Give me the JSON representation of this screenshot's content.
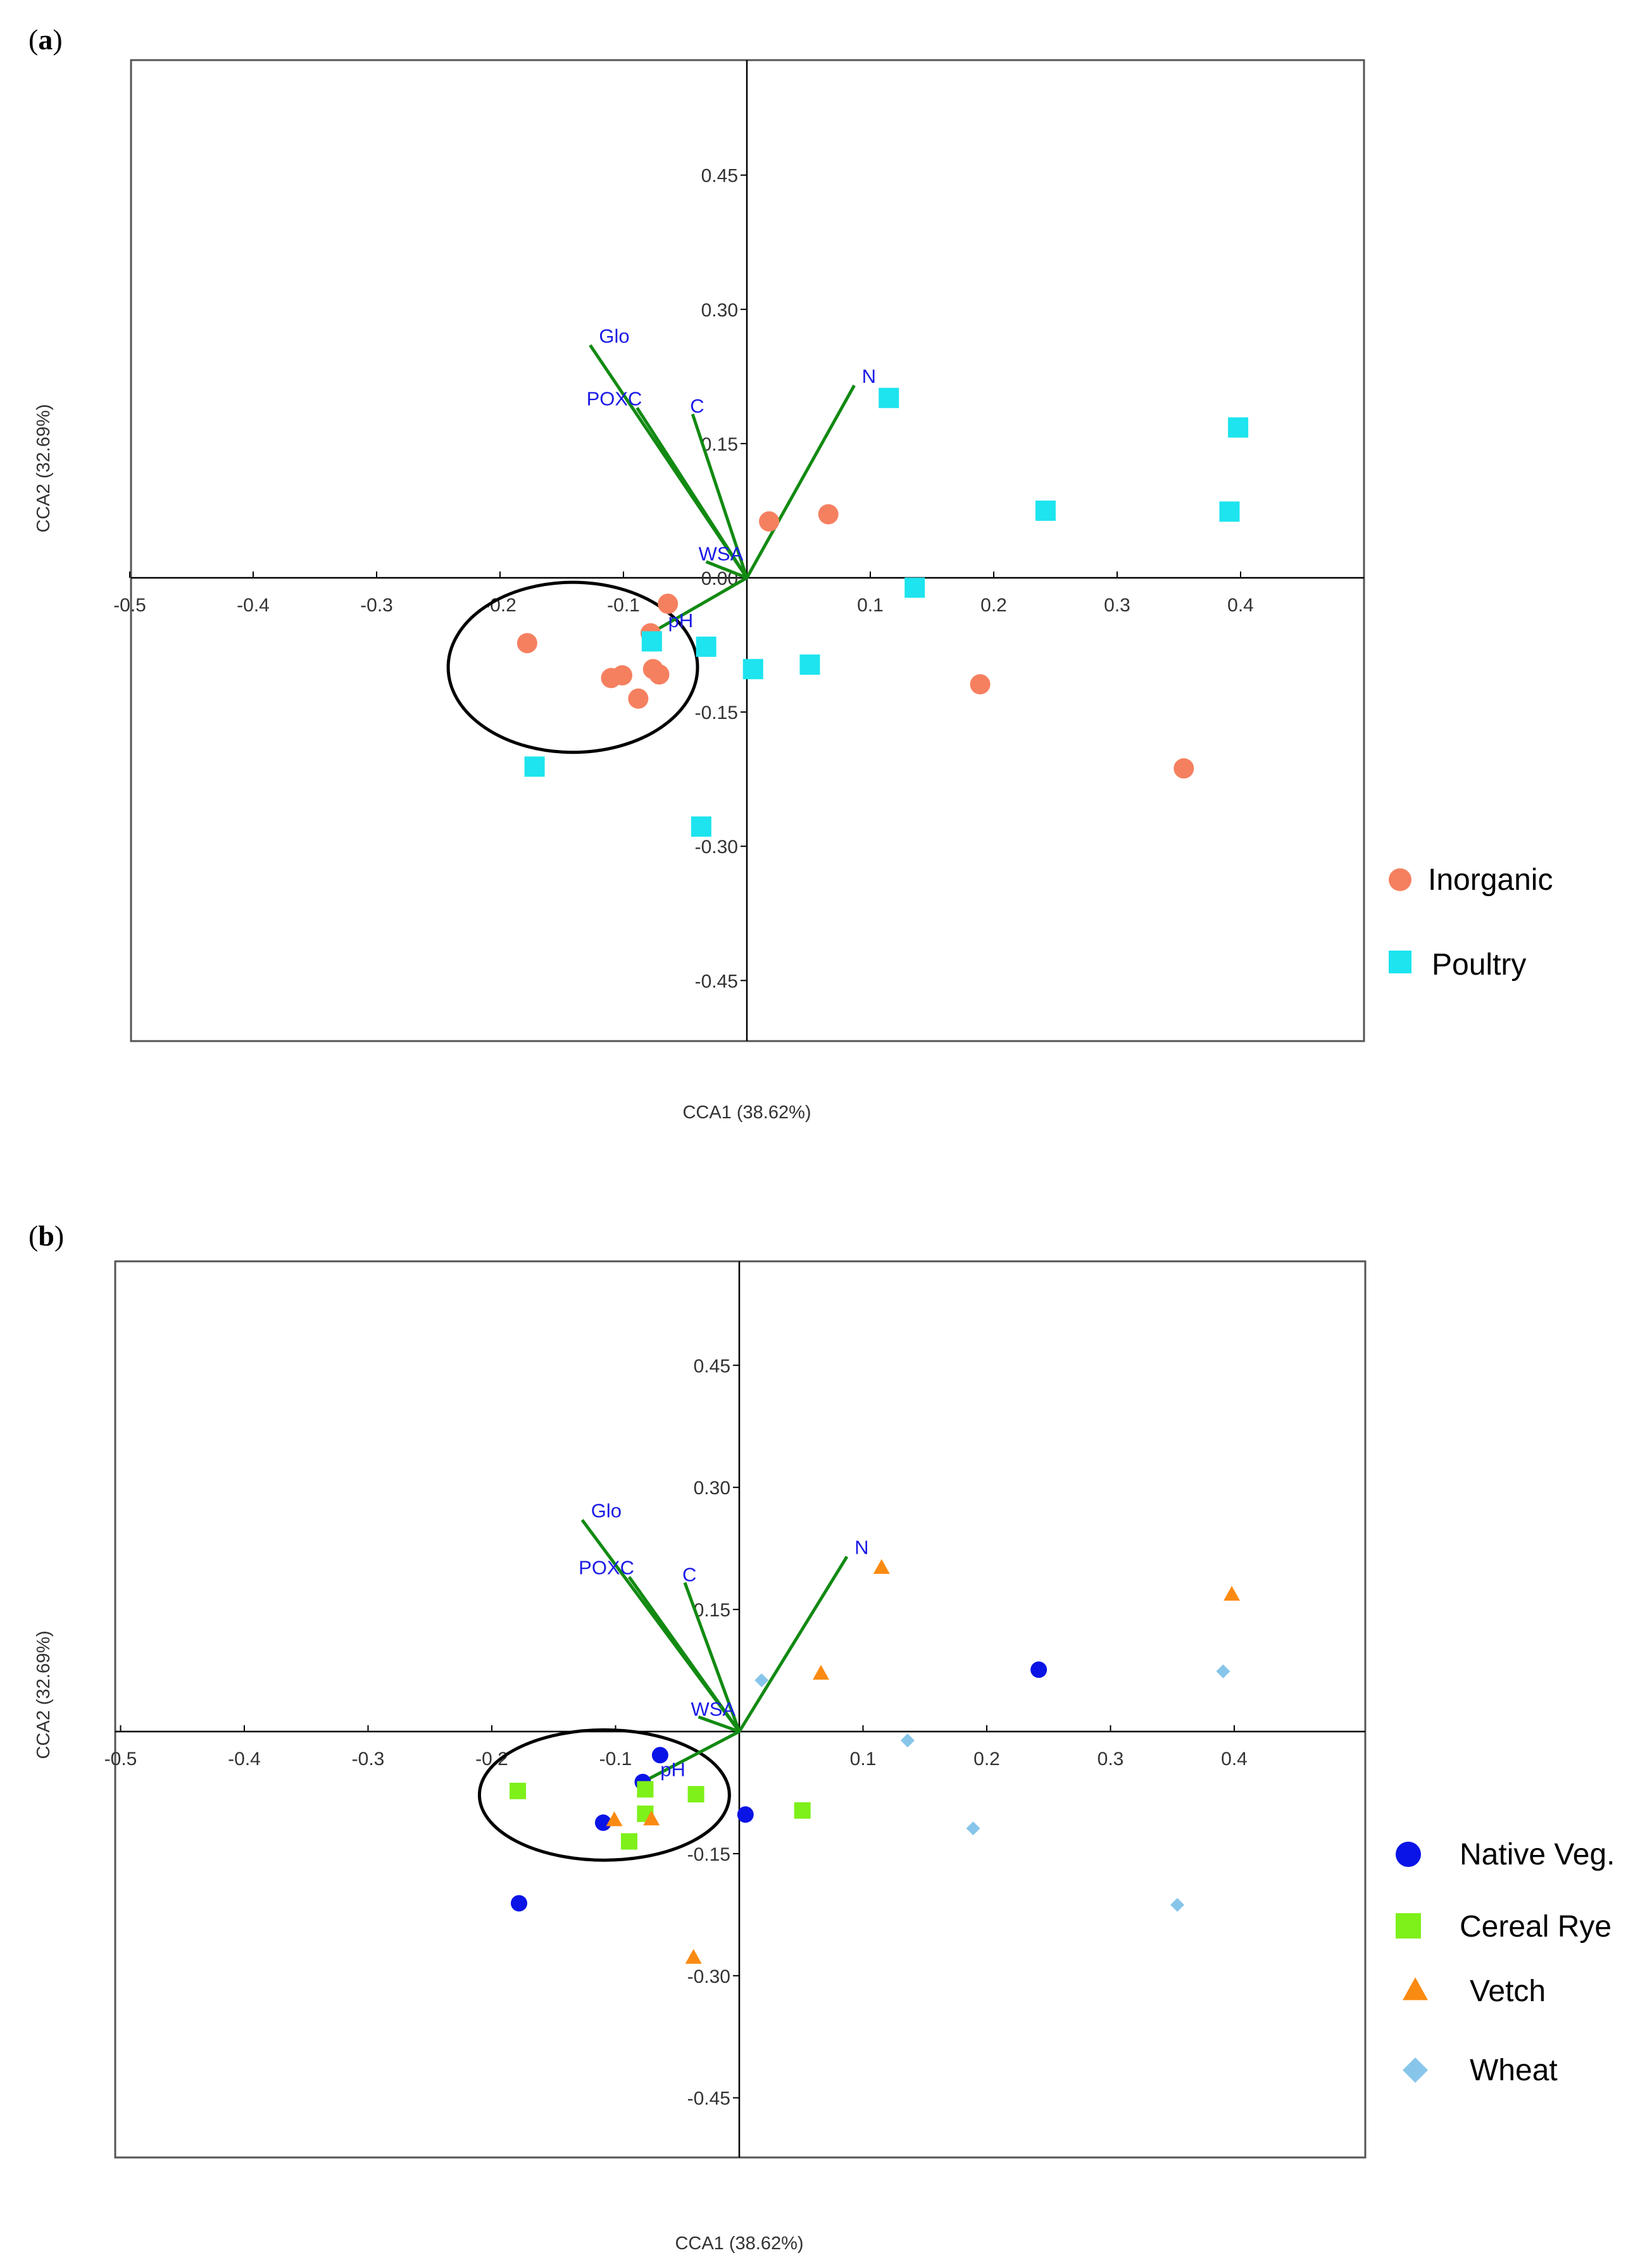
{
  "chart_data": [
    {
      "type": "scatter",
      "panel_label": "a",
      "title": "",
      "xlabel": "CCA1 (38.62%)",
      "ylabel": "CCA2 (32.69%)",
      "xlim": [
        -0.5,
        0.5
      ],
      "ylim": [
        -0.55,
        0.55
      ],
      "x_ticks": [
        -0.5,
        -0.4,
        -0.3,
        -0.2,
        -0.1,
        0.1,
        0.2,
        0.3,
        0.4
      ],
      "x_tick_labels": [
        "-0.5",
        "-0.4",
        "-0.3",
        "-0.2",
        "-0.1",
        "0.1",
        "0.2",
        "0.3",
        "0.4"
      ],
      "y_ticks": [
        0.45,
        0.3,
        0.15,
        0.0,
        -0.15,
        -0.3,
        -0.45
      ],
      "y_tick_labels": [
        "0.45",
        "0.30",
        "0.15",
        "0.00",
        "-0.15",
        "-0.30",
        "-0.45"
      ],
      "legend_position": "right",
      "vectors": [
        {
          "label": "Glo",
          "x": -0.127,
          "y": 0.26
        },
        {
          "label": "POXC",
          "x": -0.089,
          "y": 0.19
        },
        {
          "label": "C",
          "x": -0.044,
          "y": 0.183
        },
        {
          "label": "N",
          "x": 0.087,
          "y": 0.215
        },
        {
          "label": "WSA",
          "x": -0.033,
          "y": 0.018
        },
        {
          "label": "pH",
          "x": -0.073,
          "y": -0.058
        }
      ],
      "ellipse": {
        "cx": -0.141,
        "cy": -0.1,
        "rx": 0.101,
        "ry": 0.095
      },
      "series": [
        {
          "name": "Inorganic",
          "marker": "circle",
          "color": "#f58060",
          "x": [
            0.018,
            0.066,
            -0.064,
            -0.178,
            -0.101,
            -0.11,
            -0.076,
            -0.071,
            -0.088,
            -0.078,
            0.189,
            0.354
          ],
          "y": [
            0.063,
            0.071,
            -0.029,
            -0.073,
            -0.109,
            -0.112,
            -0.102,
            -0.108,
            -0.135,
            -0.062,
            -0.119,
            -0.213
          ]
        },
        {
          "name": "Poultry",
          "marker": "square",
          "color": "#1de4ee",
          "x": [
            0.115,
            0.398,
            0.242,
            0.391,
            0.136,
            -0.077,
            -0.033,
            0.005,
            0.051,
            -0.172,
            -0.037
          ],
          "y": [
            0.201,
            0.168,
            0.075,
            0.074,
            -0.011,
            -0.071,
            -0.077,
            -0.102,
            -0.097,
            -0.211,
            -0.278
          ]
        }
      ]
    },
    {
      "type": "scatter",
      "panel_label": "b",
      "title": "",
      "xlabel": "CCA1 (38.62%)",
      "ylabel": "CCA2 (32.69%)",
      "xlim": [
        -0.5,
        0.5
      ],
      "ylim": [
        -0.55,
        0.55
      ],
      "x_ticks": [
        -0.5,
        -0.4,
        -0.3,
        -0.2,
        -0.1,
        0.1,
        0.2,
        0.3,
        0.4
      ],
      "x_tick_labels": [
        "-0.5",
        "-0.4",
        "-0.3",
        "-0.2",
        "-0.1",
        "0.1",
        "0.2",
        "0.3",
        "0.4"
      ],
      "y_ticks": [
        0.45,
        0.3,
        0.15,
        -0.15,
        -0.3,
        -0.45
      ],
      "y_tick_labels": [
        "0.45",
        "0.30",
        "0.15",
        "-0.15",
        "-0.30",
        "-0.45"
      ],
      "legend_position": "right",
      "vectors": [
        {
          "label": "Glo",
          "x": -0.127,
          "y": 0.26
        },
        {
          "label": "POXC",
          "x": -0.089,
          "y": 0.19
        },
        {
          "label": "C",
          "x": -0.044,
          "y": 0.183
        },
        {
          "label": "N",
          "x": 0.087,
          "y": 0.215
        },
        {
          "label": "WSA",
          "x": -0.033,
          "y": 0.018
        },
        {
          "label": "pH",
          "x": -0.073,
          "y": -0.058
        }
      ],
      "ellipse": {
        "cx": -0.109,
        "cy": -0.078,
        "rx": 0.101,
        "ry": 0.08
      },
      "series": [
        {
          "name": "Native Veg.",
          "marker": "circle",
          "color": "#0a14e6",
          "x": [
            0.242,
            -0.064,
            -0.078,
            -0.11,
            0.005,
            -0.178
          ],
          "y": [
            0.076,
            -0.029,
            -0.062,
            -0.112,
            -0.102,
            -0.211
          ]
        },
        {
          "name": "Cereal Rye",
          "marker": "square",
          "color": "#7ef01a",
          "x": [
            -0.179,
            -0.076,
            -0.035,
            -0.076,
            -0.089,
            0.051
          ],
          "y": [
            -0.073,
            -0.071,
            -0.077,
            -0.101,
            -0.135,
            -0.097
          ]
        },
        {
          "name": "Vetch",
          "marker": "triangle",
          "color": "#fb8a12",
          "x": 0,
          "x_values": [
            0.115,
            0.066,
            0.398,
            -0.101,
            -0.071,
            -0.037
          ],
          "y_values": [
            0.201,
            0.071,
            0.168,
            -0.109,
            -0.108,
            -0.278
          ]
        },
        {
          "name": "Wheat",
          "marker": "diamond",
          "color": "#87c6ea",
          "x": [
            0.018,
            0.136,
            0.391,
            0.189,
            0.354
          ],
          "y": [
            0.063,
            -0.011,
            0.074,
            -0.119,
            -0.213
          ]
        }
      ]
    }
  ],
  "colors": {
    "vector": "#128a12",
    "vector_label": "#1a1ae6",
    "frame": "#555555",
    "axis": "#000000"
  }
}
